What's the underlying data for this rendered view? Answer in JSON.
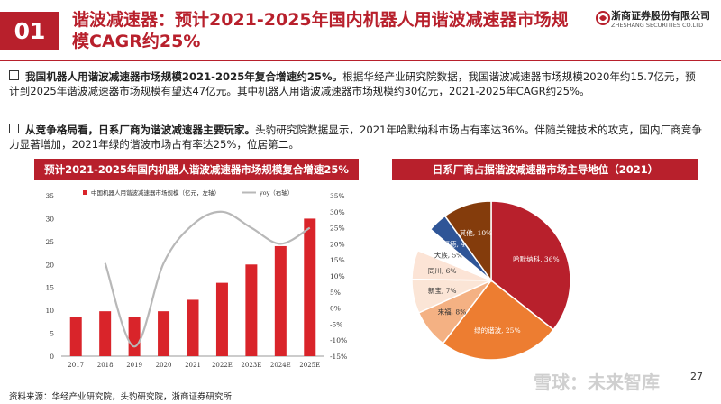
{
  "section": {
    "number": "01"
  },
  "title": {
    "text": "谐波减速器：预计2021-2025年国内机器人用谐波减速器市场规模CAGR约25%"
  },
  "logo": {
    "cn": "浙商证券股份有限公司",
    "en": "ZHESHANG SECURITIES CO.LTD"
  },
  "bullets": [
    {
      "lead": "我国机器人用谐波减速器市场规模2021-2025年复合增速约25%。",
      "text": "根据华经产业研究院数据，我国谐波减速器市场规模2020年约15.7亿元，预计到2025年谐波减速器市场规模有望达47亿元。其中机器人用谐波减速器市场规模约30亿元，2021-2025年CAGR约25%。"
    },
    {
      "lead": "从竞争格局看，日系厂商为谐波减速器主要玩家。",
      "text": "头豹研究院数据显示，2021年哈默纳科市场占有率达36%。伴随关键技术的攻克，国内厂商竞争力显著增加，2021年绿的谐波市场占有率达25%，位居第二。"
    }
  ],
  "chart_headers": {
    "left": "预计2021-2025年国内机器人谐波减速器市场规模复合增速25%",
    "right": "日系厂商占据谐波减速器市场主导地位（2021）"
  },
  "chart_data": [
    {
      "type": "bar",
      "legend": {
        "bar": "中国机器人用谐波减速器市场规模（亿元，左轴）",
        "line": "yoy（右轴）"
      },
      "categories": [
        "2017",
        "2018",
        "2019",
        "2020",
        "2021",
        "2022E",
        "2023E",
        "2024E",
        "2025E"
      ],
      "series": [
        {
          "name": "中国机器人用谐波减速器市场规模（亿元，左轴）",
          "type": "bar",
          "axis": "left",
          "values": [
            8.6,
            9.8,
            8.6,
            9.8,
            12.3,
            16.0,
            20.0,
            24.0,
            30.0
          ]
        },
        {
          "name": "yoy（右轴）",
          "type": "line",
          "axis": "right",
          "values": [
            null,
            14,
            -12,
            14,
            26,
            30,
            25,
            20,
            25
          ]
        }
      ],
      "ylim_left": [
        0,
        35
      ],
      "yticks_left": [
        "0",
        "5",
        "10",
        "15",
        "20",
        "25",
        "30",
        "35"
      ],
      "ylim_right": [
        -15,
        35
      ],
      "yticks_right": [
        "-15%",
        "-10%",
        "-5%",
        "0%",
        "5%",
        "10%",
        "15%",
        "20%",
        "25%",
        "30%",
        "35%"
      ],
      "colors": {
        "bar": "#d9242a",
        "line": "#b8b8b8"
      }
    },
    {
      "type": "pie",
      "slices": [
        {
          "label": "哈默纳科, 36%",
          "value": 36,
          "color": "#b8202c"
        },
        {
          "label": "绿的谐波, 25%",
          "value": 25,
          "color": "#ed7d31"
        },
        {
          "label": "来福, 8%",
          "value": 8,
          "color": "#f4b183"
        },
        {
          "label": "新宝, 7%",
          "value": 7,
          "color": "#fbe5d6"
        },
        {
          "label": "同川, 6%",
          "value": 6,
          "color": "#fce4d6"
        },
        {
          "label": "大族, 5%",
          "value": 5,
          "color": "#ffffff"
        },
        {
          "label": "福德, 4%",
          "value": 4,
          "color": "#2f5597"
        },
        {
          "label": "其他, 10%",
          "value": 10,
          "color": "#843c0c"
        }
      ]
    }
  ],
  "source": {
    "text": "资料来源：华经产业研究院，头豹研究院，浙商证券研究所"
  },
  "page": {
    "number": "27"
  },
  "watermark": {
    "text": "雪球：未来智库"
  }
}
